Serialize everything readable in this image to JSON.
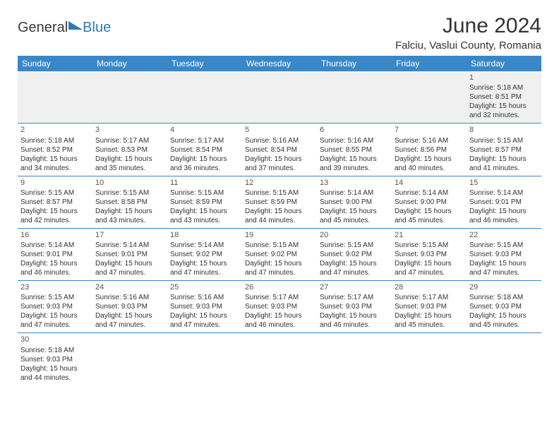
{
  "brand": {
    "part1": "General",
    "part2": "Blue"
  },
  "title": "June 2024",
  "location": "Falciu, Vaslui County, Romania",
  "day_names": [
    "Sunday",
    "Monday",
    "Tuesday",
    "Wednesday",
    "Thursday",
    "Friday",
    "Saturday"
  ],
  "colors": {
    "header_bg": "#3a87c8",
    "header_fg": "#ffffff",
    "divider": "#3a87c8",
    "logo_blue": "#2a7ab8"
  },
  "weeks": [
    [
      null,
      null,
      null,
      null,
      null,
      null,
      {
        "n": "1",
        "sr": "5:18 AM",
        "ss": "8:51 PM",
        "dl1": "15 hours",
        "dl2": "and 32 minutes."
      }
    ],
    [
      {
        "n": "2",
        "sr": "5:18 AM",
        "ss": "8:52 PM",
        "dl1": "15 hours",
        "dl2": "and 34 minutes."
      },
      {
        "n": "3",
        "sr": "5:17 AM",
        "ss": "8:53 PM",
        "dl1": "15 hours",
        "dl2": "and 35 minutes."
      },
      {
        "n": "4",
        "sr": "5:17 AM",
        "ss": "8:54 PM",
        "dl1": "15 hours",
        "dl2": "and 36 minutes."
      },
      {
        "n": "5",
        "sr": "5:16 AM",
        "ss": "8:54 PM",
        "dl1": "15 hours",
        "dl2": "and 37 minutes."
      },
      {
        "n": "6",
        "sr": "5:16 AM",
        "ss": "8:55 PM",
        "dl1": "15 hours",
        "dl2": "and 39 minutes."
      },
      {
        "n": "7",
        "sr": "5:16 AM",
        "ss": "8:56 PM",
        "dl1": "15 hours",
        "dl2": "and 40 minutes."
      },
      {
        "n": "8",
        "sr": "5:15 AM",
        "ss": "8:57 PM",
        "dl1": "15 hours",
        "dl2": "and 41 minutes."
      }
    ],
    [
      {
        "n": "9",
        "sr": "5:15 AM",
        "ss": "8:57 PM",
        "dl1": "15 hours",
        "dl2": "and 42 minutes."
      },
      {
        "n": "10",
        "sr": "5:15 AM",
        "ss": "8:58 PM",
        "dl1": "15 hours",
        "dl2": "and 43 minutes."
      },
      {
        "n": "11",
        "sr": "5:15 AM",
        "ss": "8:59 PM",
        "dl1": "15 hours",
        "dl2": "and 43 minutes."
      },
      {
        "n": "12",
        "sr": "5:15 AM",
        "ss": "8:59 PM",
        "dl1": "15 hours",
        "dl2": "and 44 minutes."
      },
      {
        "n": "13",
        "sr": "5:14 AM",
        "ss": "9:00 PM",
        "dl1": "15 hours",
        "dl2": "and 45 minutes."
      },
      {
        "n": "14",
        "sr": "5:14 AM",
        "ss": "9:00 PM",
        "dl1": "15 hours",
        "dl2": "and 45 minutes."
      },
      {
        "n": "15",
        "sr": "5:14 AM",
        "ss": "9:01 PM",
        "dl1": "15 hours",
        "dl2": "and 46 minutes."
      }
    ],
    [
      {
        "n": "16",
        "sr": "5:14 AM",
        "ss": "9:01 PM",
        "dl1": "15 hours",
        "dl2": "and 46 minutes."
      },
      {
        "n": "17",
        "sr": "5:14 AM",
        "ss": "9:01 PM",
        "dl1": "15 hours",
        "dl2": "and 47 minutes."
      },
      {
        "n": "18",
        "sr": "5:14 AM",
        "ss": "9:02 PM",
        "dl1": "15 hours",
        "dl2": "and 47 minutes."
      },
      {
        "n": "19",
        "sr": "5:15 AM",
        "ss": "9:02 PM",
        "dl1": "15 hours",
        "dl2": "and 47 minutes."
      },
      {
        "n": "20",
        "sr": "5:15 AM",
        "ss": "9:02 PM",
        "dl1": "15 hours",
        "dl2": "and 47 minutes."
      },
      {
        "n": "21",
        "sr": "5:15 AM",
        "ss": "9:03 PM",
        "dl1": "15 hours",
        "dl2": "and 47 minutes."
      },
      {
        "n": "22",
        "sr": "5:15 AM",
        "ss": "9:03 PM",
        "dl1": "15 hours",
        "dl2": "and 47 minutes."
      }
    ],
    [
      {
        "n": "23",
        "sr": "5:15 AM",
        "ss": "9:03 PM",
        "dl1": "15 hours",
        "dl2": "and 47 minutes."
      },
      {
        "n": "24",
        "sr": "5:16 AM",
        "ss": "9:03 PM",
        "dl1": "15 hours",
        "dl2": "and 47 minutes."
      },
      {
        "n": "25",
        "sr": "5:16 AM",
        "ss": "9:03 PM",
        "dl1": "15 hours",
        "dl2": "and 47 minutes."
      },
      {
        "n": "26",
        "sr": "5:17 AM",
        "ss": "9:03 PM",
        "dl1": "15 hours",
        "dl2": "and 46 minutes."
      },
      {
        "n": "27",
        "sr": "5:17 AM",
        "ss": "9:03 PM",
        "dl1": "15 hours",
        "dl2": "and 46 minutes."
      },
      {
        "n": "28",
        "sr": "5:17 AM",
        "ss": "9:03 PM",
        "dl1": "15 hours",
        "dl2": "and 45 minutes."
      },
      {
        "n": "29",
        "sr": "5:18 AM",
        "ss": "9:03 PM",
        "dl1": "15 hours",
        "dl2": "and 45 minutes."
      }
    ],
    [
      {
        "n": "30",
        "sr": "5:18 AM",
        "ss": "9:03 PM",
        "dl1": "15 hours",
        "dl2": "and 44 minutes."
      },
      null,
      null,
      null,
      null,
      null,
      null
    ]
  ],
  "labels": {
    "sunrise": "Sunrise:",
    "sunset": "Sunset:",
    "daylight": "Daylight:"
  }
}
